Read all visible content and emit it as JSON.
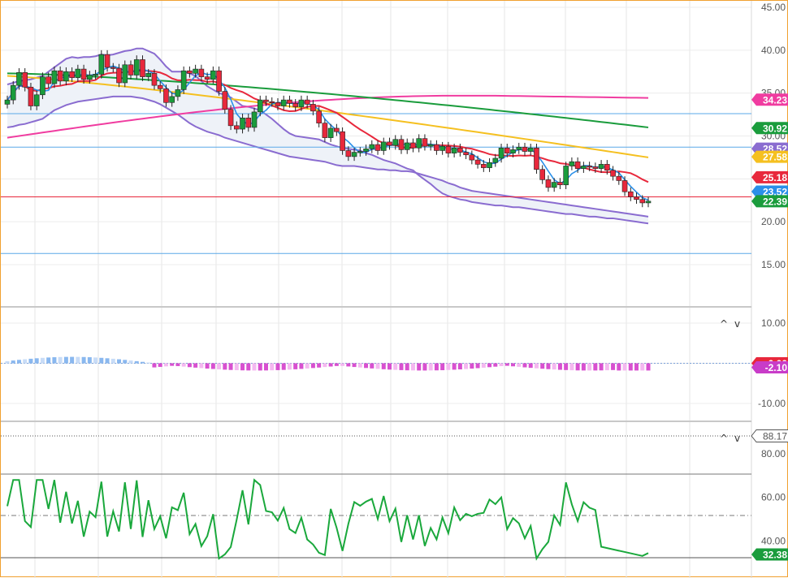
{
  "price_panel": {
    "y_ticks": [
      "45.00",
      "40.00",
      "35.00",
      "30.00",
      "25.00",
      "20.00",
      "15.00"
    ],
    "tags": [
      {
        "label": "34.23",
        "color": "#f03ca0"
      },
      {
        "label": "30.92",
        "color": "#1a9c3c"
      },
      {
        "label": "28.52",
        "color": "#8a6cd0"
      },
      {
        "label": "27.58",
        "color": "#f5c020"
      },
      {
        "label": "25.18",
        "color": "#e8283c"
      },
      {
        "label": "23.52",
        "color": "#2a8fe8"
      },
      {
        "label": "22.39",
        "color": "#1a9c3c"
      }
    ]
  },
  "macd_panel": {
    "y_ticks": [
      "10.00",
      "0.00",
      "-10.00"
    ],
    "tags": [
      {
        "label": "0.00",
        "color": "#e8283c"
      },
      {
        "label": "-2.10",
        "color": "#c83cc8"
      }
    ]
  },
  "rsi_panel": {
    "y_ticks": [
      "80.00",
      "60.00",
      "40.00"
    ],
    "tags": [
      {
        "label": "88.17",
        "color": "#ffffff"
      },
      {
        "label": "32.38",
        "color": "#1a9c3c"
      }
    ]
  },
  "controls": {
    "expand": "^",
    "collapse": "v"
  },
  "colors": {
    "up": "#1a9c3c",
    "down": "#e8283c",
    "bb": "#8a6cd0",
    "bb_fill": "#eef2f8",
    "sma20": "#2a8fe8",
    "sma50": "#e8283c",
    "sma100": "#f5c020",
    "sma200": "#1a9c3c",
    "sma_pink": "#f03ca0",
    "hist_pos_dark": "#8ab8ef",
    "hist_pos_light": "#c8dcf7",
    "hist_neg_dark": "#d850d0",
    "hist_neg_light": "#f4b8f0",
    "rsi": "#1aa83c"
  },
  "chart_data": [
    {
      "type": "candlestick",
      "ylim": [
        14.0,
        46.0
      ],
      "y_ticks": [
        45,
        40,
        35,
        30,
        25,
        20,
        15
      ],
      "horizontal_levels": [
        {
          "value": 32.6,
          "color": "#5aa8e8"
        },
        {
          "value": 28.7,
          "color": "#5aa8e8"
        },
        {
          "value": 22.9,
          "color": "#e8283c"
        },
        {
          "value": 16.3,
          "color": "#5aa8e8"
        }
      ],
      "closes": [
        34.2,
        35.9,
        37.4,
        35.7,
        33.5,
        34.8,
        36.9,
        36.1,
        37.6,
        36.4,
        37.5,
        36.8,
        37.8,
        36.6,
        37.1,
        37.2,
        39.5,
        38.0,
        37.9,
        36.2,
        38.3,
        37.1,
        38.9,
        36.9,
        37.3,
        35.9,
        35.5,
        33.9,
        34.6,
        35.4,
        37.6,
        37.3,
        37.8,
        36.9,
        36.6,
        37.6,
        35.2,
        33.1,
        31.2,
        30.8,
        32.1,
        31.0,
        32.8,
        34.2,
        34.0,
        33.9,
        33.5,
        34.2,
        33.8,
        33.4,
        34.2,
        33.7,
        32.9,
        31.5,
        29.8,
        30.9,
        30.5,
        28.3,
        27.6,
        28.1,
        28.2,
        28.5,
        29.0,
        28.3,
        29.3,
        28.9,
        29.6,
        28.4,
        29.2,
        28.6,
        29.7,
        28.8,
        29.0,
        28.3,
        28.8,
        28.0,
        28.6,
        28.1,
        27.8,
        27.2,
        26.7,
        26.3,
        26.9,
        27.4,
        28.6,
        28.0,
        28.4,
        28.7,
        28.2,
        28.6,
        26.1,
        24.9,
        24.0,
        24.6,
        24.3,
        26.5,
        27.0,
        26.2,
        26.5,
        26.4,
        26.2,
        26.7,
        26.0,
        25.3,
        24.8,
        23.5,
        22.9,
        22.6,
        22.2,
        22.4
      ],
      "series": [
        {
          "name": "Bollinger upper",
          "values": [
            36.0,
            36.2,
            36.4,
            36.5,
            36.6,
            36.8,
            37.0,
            37.5,
            38.0,
            38.5,
            39.0,
            39.2,
            39.1,
            39.2,
            39.2,
            39.3,
            39.5,
            39.4,
            39.5,
            39.7,
            39.9,
            40.0,
            40.2,
            40.2,
            39.9,
            39.6,
            38.9,
            38.1,
            37.5,
            37.5,
            37.5,
            37.3,
            37.0,
            36.4,
            35.8,
            35.4,
            35.0,
            34.8,
            34.5,
            34.0,
            33.5,
            33.4,
            33.2,
            33.0,
            32.5,
            32.0,
            31.4,
            30.8,
            30.3,
            30.0,
            29.9,
            29.8,
            29.7,
            29.6,
            29.3,
            29.0,
            28.8,
            28.6,
            28.5,
            28.4,
            28.3,
            28.0,
            27.8,
            27.5,
            27.2,
            27.0,
            26.8,
            26.5,
            26.2,
            26.0,
            25.4,
            24.9,
            24.4,
            23.8,
            23.3,
            23.0,
            22.8,
            22.6,
            22.5,
            22.3,
            22.2,
            22.1,
            22.0,
            21.9,
            21.9,
            21.8,
            21.7,
            21.7,
            21.6,
            21.5,
            21.4,
            21.3,
            21.2,
            21.1,
            21.0,
            20.9,
            20.9,
            20.8,
            20.7,
            20.6,
            20.6,
            20.5,
            20.4,
            20.4,
            20.3,
            20.2,
            20.1,
            20.0,
            19.9,
            19.8
          ]
        },
        {
          "name": "Bollinger lower",
          "values": [
            31.0,
            31.1,
            31.3,
            31.4,
            31.6,
            31.8,
            32.0,
            32.5,
            33.0,
            33.3,
            33.6,
            33.8,
            34.0,
            34.1,
            34.2,
            34.3,
            34.4,
            34.5,
            34.6,
            34.6,
            34.6,
            34.6,
            34.5,
            34.4,
            34.2,
            34.0,
            33.7,
            33.3,
            32.9,
            32.5,
            32.0,
            31.5,
            31.1,
            30.8,
            30.5,
            30.3,
            30.1,
            29.8,
            29.6,
            29.4,
            29.2,
            29.0,
            28.8,
            28.6,
            28.4,
            28.2,
            28.0,
            27.8,
            27.6,
            27.5,
            27.4,
            27.3,
            27.2,
            27.1,
            27.0,
            26.8,
            26.6,
            26.5,
            26.5,
            26.5,
            26.4,
            26.3,
            26.2,
            26.1,
            26.1,
            26.0,
            26.0,
            25.9,
            25.9,
            25.8,
            25.6,
            25.4,
            25.2,
            25.0,
            24.8,
            24.5,
            24.3,
            24.0,
            23.8,
            23.6,
            23.5,
            23.4,
            23.3,
            23.2,
            23.1,
            23.0,
            22.9,
            22.8,
            22.7,
            22.6,
            22.5,
            22.4,
            22.3,
            22.2,
            22.1,
            22.0,
            21.9,
            21.8,
            21.7,
            21.6,
            21.5,
            21.4,
            21.3,
            21.2,
            21.1,
            21.0,
            20.9,
            20.8,
            20.7,
            20.6
          ]
        }
      ]
    }
  ]
}
